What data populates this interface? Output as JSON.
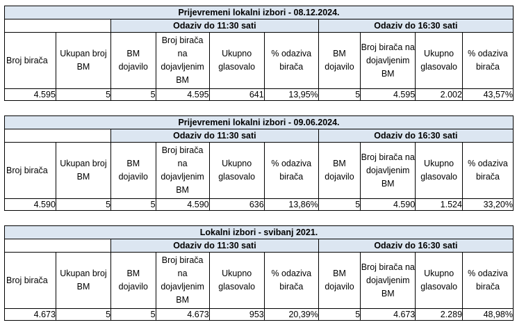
{
  "headers": {
    "broj_biraca": "Broj birača",
    "ukupan_bm": "Ukupan broj BM",
    "bm_dojavilo": "BM dojavilo",
    "broj_biraca_dojavljenim": "Broj birača na dojavljenim BM",
    "ukupno_glasovalo": "Ukupno glasovalo",
    "pct_odaziva": "% odaziva birača"
  },
  "tables": [
    {
      "title": "Prijevremeni lokalni izbori - 08.12.2024.",
      "group1": "Odaziv do 11:30 sati",
      "group2": "Odaziv do 16:30 sati",
      "row": {
        "broj_biraca": "4.595",
        "ukupan_bm": "5",
        "g1_bm": "5",
        "g1_biraci": "4.595",
        "g1_glasovalo": "641",
        "g1_pct": "13,95%",
        "g2_bm": "5",
        "g2_biraci": "4.595",
        "g2_glasovalo": "2.002",
        "g2_pct": "43,57%"
      }
    },
    {
      "title": "Prijevremeni lokalni izbori - 09.06.2024.",
      "group1": "Odaziv do 11:30 sati",
      "group2": "Odaziv do 16:30 sati",
      "row": {
        "broj_biraca": "4.590",
        "ukupan_bm": "5",
        "g1_bm": "5",
        "g1_biraci": "4.590",
        "g1_glasovalo": "636",
        "g1_pct": "13,86%",
        "g2_bm": "5",
        "g2_biraci": "4.590",
        "g2_glasovalo": "1.524",
        "g2_pct": "33,20%"
      }
    },
    {
      "title": "Lokalni izbori - svibanj 2021.",
      "group1": "Odaziv do 11:30 sati",
      "group2": "Odaziv do 16:30 sati",
      "row": {
        "broj_biraca": "4.673",
        "ukupan_bm": "5",
        "g1_bm": "5",
        "g1_biraci": "4.673",
        "g1_glasovalo": "953",
        "g1_pct": "20,39%",
        "g2_bm": "5",
        "g2_biraci": "4.673",
        "g2_glasovalo": "2.289",
        "g2_pct": "48,98%"
      }
    }
  ]
}
